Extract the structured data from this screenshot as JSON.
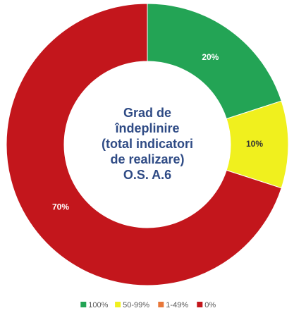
{
  "chart_data": {
    "type": "donut",
    "center_text": [
      "Grad de",
      "îndeplinire",
      "(total indicatori",
      "de realizare)",
      "O.S. A.6"
    ],
    "categories": [
      "100%",
      "50-99%",
      "1-49%",
      "0%"
    ],
    "values": [
      20,
      10,
      0,
      70
    ],
    "value_labels": [
      "20%",
      "10%",
      null,
      "70%"
    ],
    "colors": [
      "#23a455",
      "#f0f01e",
      "#e8783a",
      "#c3161c"
    ]
  }
}
